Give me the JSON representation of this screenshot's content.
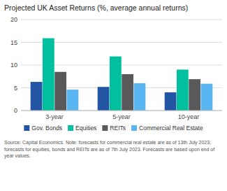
{
  "chart_data": {
    "type": "bar",
    "title": "Projected UK Asset Returns (%, average annual returns)",
    "categories": [
      "3-year",
      "5-year",
      "10-year"
    ],
    "series": [
      {
        "name": "Gov. Bonds",
        "color": "#2255a4",
        "values": [
          6.3,
          5.2,
          4.0
        ]
      },
      {
        "name": "Equities",
        "color": "#00c0a0",
        "values": [
          15.9,
          11.9,
          9.0
        ]
      },
      {
        "name": "REITs",
        "color": "#595959",
        "values": [
          8.5,
          8.0,
          6.9
        ]
      },
      {
        "name": "Commercial Real Estate",
        "color": "#5ab4f0",
        "values": [
          4.6,
          6.0,
          5.9
        ]
      }
    ],
    "ylim": [
      0,
      20
    ],
    "yticks": [
      0,
      5,
      10,
      15,
      20
    ],
    "grid": true,
    "legend": "bottom",
    "source": "Source: Capital Economics. Note: forecasts for commercial real estate are as of 13th July\n2023; forecasts for equities, bonds and REITs are as of 7th July 2023. Forecasts are based\nupon end of year values."
  }
}
